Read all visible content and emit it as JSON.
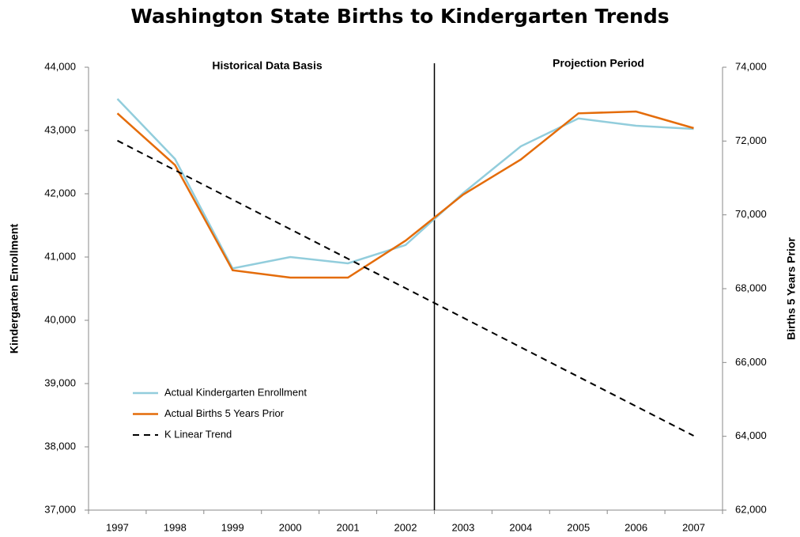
{
  "chart_data": {
    "type": "line",
    "title": "Washington State Births to Kindergarten Trends",
    "y_label": "Kindergarten Enrollment",
    "y2_label": "Births 5 Years Prior",
    "annotations": [
      "Historical Data Basis",
      "Projection Period"
    ],
    "categories": [
      "1997",
      "1998",
      "1999",
      "2000",
      "2001",
      "2002",
      "2003",
      "2004",
      "2005",
      "2006",
      "2007"
    ],
    "ylim": [
      37000,
      44000
    ],
    "yticks": [
      {
        "value": 37000,
        "label": "37,000"
      },
      {
        "value": 38000,
        "label": "38,000"
      },
      {
        "value": 39000,
        "label": "39,000"
      },
      {
        "value": 40000,
        "label": "40,000"
      },
      {
        "value": 41000,
        "label": "41,000"
      },
      {
        "value": 42000,
        "label": "42,000"
      },
      {
        "value": 43000,
        "label": "43,000"
      },
      {
        "value": 44000,
        "label": "44,000"
      }
    ],
    "y2lim": [
      62000,
      74000
    ],
    "y2ticks": [
      {
        "value": 62000,
        "label": "62,000"
      },
      {
        "value": 64000,
        "label": "64,000"
      },
      {
        "value": 66000,
        "label": "66,000"
      },
      {
        "value": 68000,
        "label": "68,000"
      },
      {
        "value": 70000,
        "label": "70,000"
      },
      {
        "value": 72000,
        "label": "72,000"
      },
      {
        "value": 74000,
        "label": "74,000"
      }
    ],
    "legend": "lower left",
    "series": [
      {
        "name": "Actual Kindergarten Enrollment",
        "color": "#92cddc",
        "values": [
          43500,
          42550,
          40820,
          41000,
          40900,
          41190,
          42010,
          42750,
          43190,
          43075,
          43025
        ]
      },
      {
        "name": "Actual Births 5 Years Prior",
        "color": "#e46c0a",
        "axis": "y2",
        "values": [
          72750,
          71350,
          68500,
          68300,
          68300,
          69300,
          70550,
          71500,
          72750,
          72800,
          72350
        ]
      },
      {
        "name": "K Linear Trend",
        "color": "#000000",
        "dash": "dashed",
        "values": [
          42840,
          42373,
          41907,
          41440,
          40974,
          40507,
          40041,
          39574,
          39108,
          38641,
          38175
        ]
      }
    ]
  }
}
